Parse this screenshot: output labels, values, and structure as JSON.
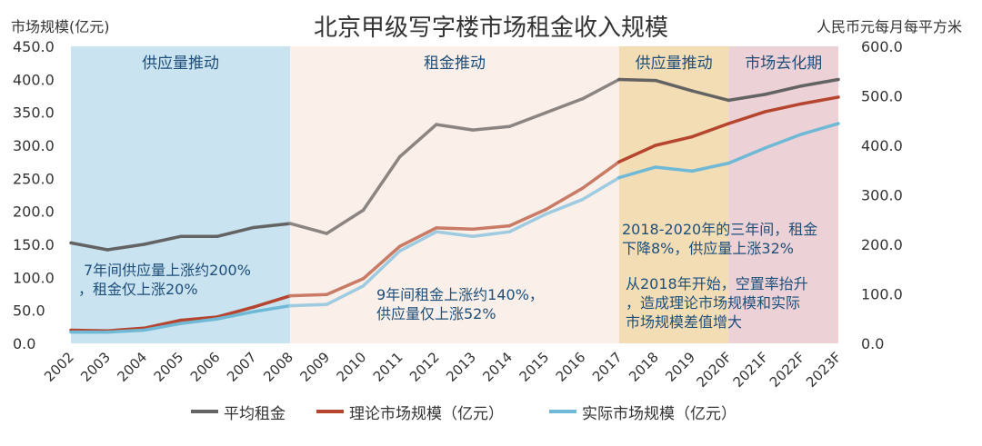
{
  "chart_data": {
    "type": "line",
    "title": "北京甲级写字楼市场租金收入规模",
    "ylabel_left": "市场规模(亿元)",
    "ylabel_right": "人民币元每月每平方米",
    "ylim_left": [
      0,
      450
    ],
    "ylim_right": [
      0,
      600
    ],
    "yticks_left": [
      "0.0",
      "50.0",
      "100.0",
      "150.0",
      "200.0",
      "250.0",
      "300.0",
      "350.0",
      "400.0",
      "450.0"
    ],
    "yticks_right": [
      "0.0",
      "100.0",
      "200.0",
      "300.0",
      "400.0",
      "500.0",
      "600.0"
    ],
    "categories": [
      "2002",
      "2003",
      "2004",
      "2005",
      "2006",
      "2007",
      "2008",
      "2009",
      "2010",
      "2011",
      "2012",
      "2013",
      "2014",
      "2015",
      "2016",
      "2017",
      "2018",
      "2019",
      "2020F",
      "2021F",
      "2022F",
      "2023F"
    ],
    "series": [
      {
        "name": "平均租金",
        "axis": "right",
        "color": "#8c8480",
        "values": [
          203,
          189,
          200,
          216,
          216,
          234,
          242,
          222,
          269,
          377,
          442,
          431,
          438,
          466,
          494,
          533,
          531,
          510,
          491,
          503,
          520,
          533
        ]
      },
      {
        "name": "理论市场规模（亿元）",
        "axis": "left",
        "color": "#c97b66",
        "values": [
          20,
          19,
          23,
          35,
          40,
          55,
          72,
          74,
          98,
          147,
          175,
          173,
          178,
          203,
          235,
          275,
          300,
          313,
          333,
          351,
          363,
          373
        ]
      },
      {
        "name": "实际市场规模（亿元）",
        "axis": "left",
        "color": "#9ecbe0",
        "values": [
          17,
          17,
          20,
          30,
          37,
          48,
          57,
          59,
          87,
          140,
          169,
          162,
          169,
          196,
          218,
          251,
          267,
          261,
          273,
          296,
          317,
          333
        ]
      }
    ],
    "phases": [
      {
        "label": "供应量推动",
        "from": "2002",
        "to": "2008",
        "color": "#c9e3f0"
      },
      {
        "label": "租金推动",
        "from": "2008",
        "to": "2017",
        "color": "#faefe9"
      },
      {
        "label": "供应量推动",
        "from": "2017",
        "to": "2020F",
        "color": "#f3ddb5"
      },
      {
        "label": "市场去化期",
        "from": "2020F",
        "to": "2023F",
        "color": "#ecd2d6"
      }
    ],
    "annotations": [
      {
        "lines": [
          "7年间供应量上涨约200%",
          "，租金仅上涨20%"
        ]
      },
      {
        "lines": [
          "9年间租金上涨约140%，",
          "供应量仅上涨52%"
        ]
      },
      {
        "lines": [
          "2018-2020年的三年间，租金",
          "下降8%，供应量上涨32%"
        ]
      },
      {
        "lines": [
          "从2018年开始，空置率抬升",
          "，造成理论市场规模和实际",
          "市场规模差值增大"
        ]
      }
    ],
    "legend_position": "bottom"
  }
}
